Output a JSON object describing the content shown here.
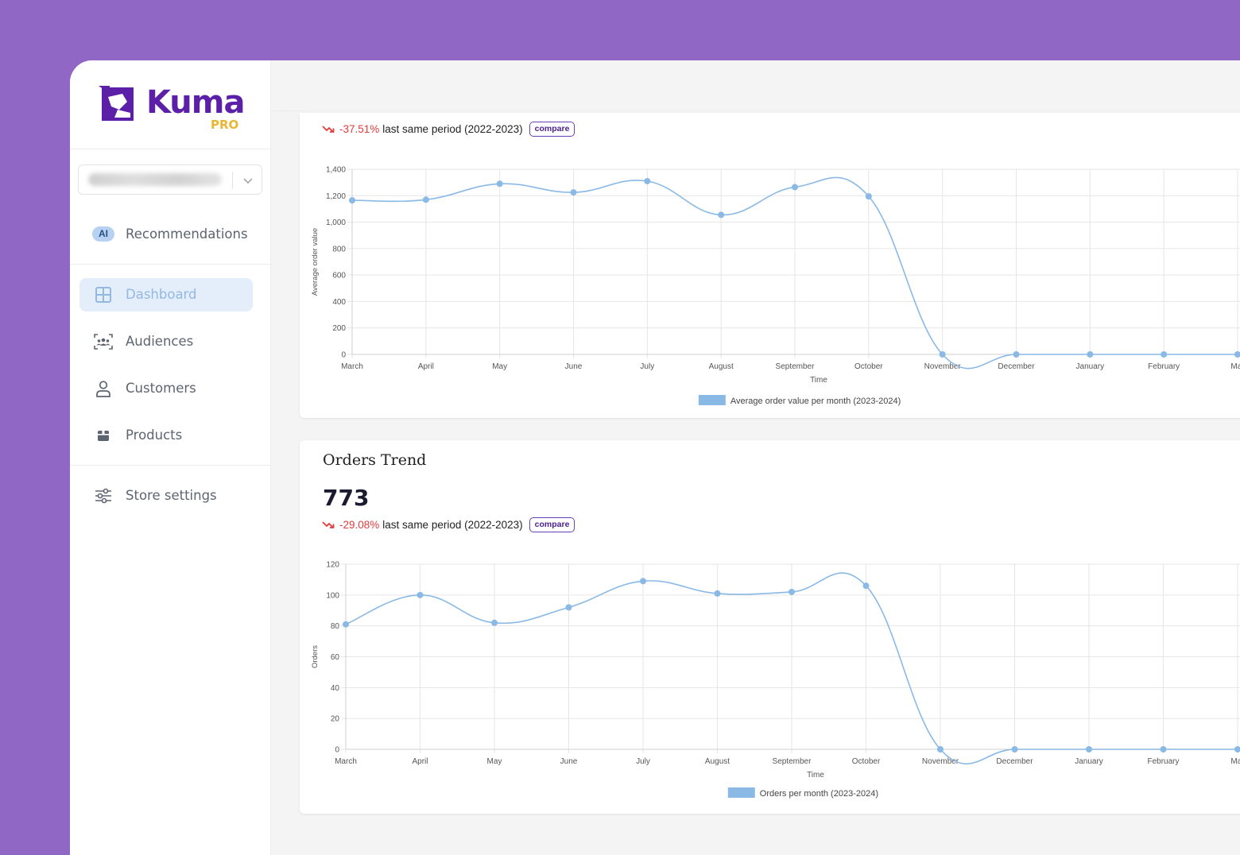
{
  "brand": {
    "name": "Kuma",
    "tier": "PRO",
    "color": "#5b1fa8",
    "tier_color": "#e9b632"
  },
  "store_selector": {
    "icon": "chevron-down-icon"
  },
  "sidebar": {
    "ai_item": {
      "badge": "AI",
      "label": "Recommendations"
    },
    "items": [
      {
        "label": "Dashboard",
        "icon": "dashboard-grid-icon",
        "active": true
      },
      {
        "label": "Audiences",
        "icon": "audiences-icon",
        "active": false
      },
      {
        "label": "Customers",
        "icon": "user-icon",
        "active": false
      },
      {
        "label": "Products",
        "icon": "box-icon",
        "active": false
      }
    ],
    "settings": {
      "label": "Store settings",
      "icon": "sliders-icon"
    }
  },
  "aov_card": {
    "delta_pct": "-37.51%",
    "delta_text": "last same period (2022-2023)",
    "compare_label": "compare"
  },
  "orders_card": {
    "title": "Orders Trend",
    "value": "773",
    "delta_pct": "-29.08%",
    "delta_text": "last same period (2022-2023)",
    "compare_label": "compare"
  },
  "chart_data": [
    {
      "type": "line",
      "categories": [
        "March",
        "April",
        "May",
        "June",
        "July",
        "August",
        "September",
        "October",
        "November",
        "December",
        "January",
        "February",
        "Mar"
      ],
      "series": [
        {
          "name": "Average order value per month (2023-2024)",
          "values": [
            1165,
            1170,
            1290,
            1225,
            1310,
            1055,
            1265,
            1195,
            0,
            0,
            0,
            0,
            0
          ],
          "color": "#8ab9e6"
        }
      ],
      "xlabel": "Time",
      "ylabel": "Average order value",
      "ylim": [
        0,
        1400
      ],
      "yticks": [
        0,
        200,
        400,
        600,
        800,
        1000,
        1200,
        1400
      ],
      "ytick_labels": [
        "0",
        "200",
        "400",
        "600",
        "800",
        "1,000",
        "1,200",
        "1,400"
      ],
      "grid": true,
      "legend": "bottom"
    },
    {
      "type": "line",
      "categories": [
        "March",
        "April",
        "May",
        "June",
        "July",
        "August",
        "September",
        "October",
        "November",
        "December",
        "January",
        "February",
        "Mar"
      ],
      "series": [
        {
          "name": "Orders per month (2023-2024)",
          "values": [
            81,
            100,
            82,
            92,
            109,
            101,
            102,
            106,
            0,
            0,
            0,
            0,
            0
          ],
          "color": "#8ab9e6"
        }
      ],
      "xlabel": "Time",
      "ylabel": "Orders",
      "ylim": [
        0,
        120
      ],
      "yticks": [
        0,
        20,
        40,
        60,
        80,
        100,
        120
      ],
      "ytick_labels": [
        "0",
        "20",
        "40",
        "60",
        "80",
        "100",
        "120"
      ],
      "grid": true,
      "legend": "bottom"
    }
  ]
}
